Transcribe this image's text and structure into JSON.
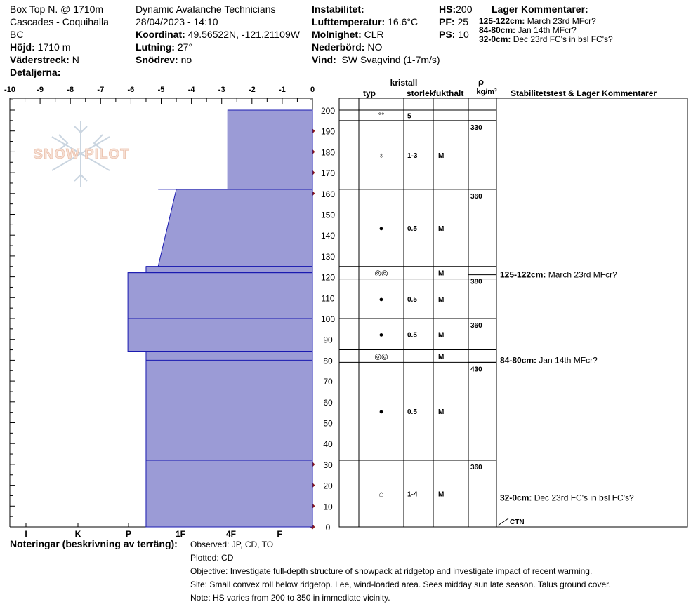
{
  "header": {
    "location": "Box Top N. @ 1710m",
    "range": "Cascades - Coquihalla",
    "region": "BC",
    "elevation_label": "Höjd:",
    "elevation": "1710 m",
    "aspect_label": "Väderstreck:",
    "aspect": "N",
    "details_label": "Detaljerna:",
    "organization": "Dynamic Avalanche Technicians",
    "datetime": "28/04/2023 - 14:10",
    "coord_label": "Koordinat:",
    "coord": "49.56522N, -121.21109W",
    "slope_label": "Lutning:",
    "slope": "27°",
    "drift_label": "Snödrev:",
    "drift": "no",
    "instability_label": "Instabilitet:",
    "airtemp_label": "Lufttemperatur:",
    "airtemp": "16.6°C",
    "cloud_label": "Molnighet:",
    "cloud": "CLR",
    "precip_label": "Nederbörd:",
    "precip": "NO",
    "wind_label": "Vind:",
    "wind": "SW Svagvind (1-7m/s)",
    "hs_label": "HS:",
    "hs": "200",
    "pf_label": "PF:",
    "pf": "25",
    "ps_label": "PS:",
    "ps": "10",
    "layer_comments_title": "Lager Kommentarer:",
    "layer_comments": [
      {
        "range": "125-122cm:",
        "text": "March 23rd MFcr?"
      },
      {
        "range": "84-80cm:",
        "text": "Jan 14th MFcr?"
      },
      {
        "range": "32-0cm:",
        "text": "Dec 23rd FC's in bsl FC's?"
      }
    ]
  },
  "table_headers": {
    "crystal": "kristall",
    "type": "typ",
    "size": "storlek",
    "moisture": "fukthalt",
    "rho": "ρ",
    "density_unit": "kg/m³",
    "stability": "Stabilitetstest & Lager Kommentarer"
  },
  "chart_data": {
    "type": "snow-profile",
    "temp_axis": [
      -10,
      -9,
      -8,
      -7,
      -6,
      -5,
      -4,
      -3,
      -2,
      -1,
      0
    ],
    "height_axis": [
      200,
      190,
      180,
      170,
      160,
      150,
      140,
      130,
      120,
      110,
      100,
      90,
      80,
      70,
      60,
      50,
      40,
      30,
      20,
      10,
      0
    ],
    "hardness_axis": [
      "I",
      "K",
      "P",
      "1F",
      "4F",
      "F"
    ],
    "temperature_points": [
      190,
      180,
      170,
      160,
      30,
      20,
      10,
      0
    ],
    "hardness_profile": [
      {
        "top": 200,
        "bottom": 162,
        "temp_left": -2.8
      },
      {
        "top": 162,
        "bottom": 125,
        "temp_left_top": -4.5,
        "temp_left_bottom": -5.1
      },
      {
        "top": 125,
        "bottom": 122,
        "temp_left": -5.5
      },
      {
        "top": 122,
        "bottom": 84,
        "temp_left": -6.1
      },
      {
        "top": 84,
        "bottom": 0,
        "temp_left": -5.5
      }
    ],
    "layer_lines": [
      162,
      125,
      122,
      100,
      84,
      80,
      32
    ],
    "layers": [
      {
        "top": 200,
        "bottom": 195,
        "type": "°°",
        "size": "5",
        "moisture": ""
      },
      {
        "top": 195,
        "bottom": 162,
        "type": "♁",
        "size": "1-3",
        "moisture": "M"
      },
      {
        "top": 162,
        "bottom": 125,
        "type": "●",
        "size": "0.5",
        "moisture": "M"
      },
      {
        "top": 125,
        "bottom": 119,
        "type": "◎◎",
        "size": "",
        "moisture": "M"
      },
      {
        "top": 119,
        "bottom": 100,
        "type": "●",
        "size": "0.5",
        "moisture": "M"
      },
      {
        "top": 100,
        "bottom": 85,
        "type": "●",
        "size": "0.5",
        "moisture": "M"
      },
      {
        "top": 85,
        "bottom": 79,
        "type": "◎◎",
        "size": "",
        "moisture": "M"
      },
      {
        "top": 79,
        "bottom": 32,
        "type": "●",
        "size": "0.5",
        "moisture": "M"
      },
      {
        "top": 32,
        "bottom": 0,
        "type": "⌂",
        "size": "1-4",
        "moisture": "M"
      }
    ],
    "densities": [
      {
        "at": 195,
        "value": "330"
      },
      {
        "at": 162,
        "value": "360"
      },
      {
        "at": 121,
        "value": "380"
      },
      {
        "at": 100,
        "value": "360"
      },
      {
        "at": 79,
        "value": "430"
      },
      {
        "at": 32,
        "value": "360"
      }
    ],
    "comments": [
      {
        "at": 121,
        "range": "125-122cm:",
        "text": "March 23rd MFcr?"
      },
      {
        "at": 80,
        "range": "84-80cm:",
        "text": "Jan 14th MFcr?"
      },
      {
        "at": 14,
        "range": "32-0cm:",
        "text": "Dec 23rd FC's in bsl FC's?"
      }
    ],
    "test": "CTN"
  },
  "notes": {
    "title": "Noteringar (beskrivning av terräng):",
    "lines": [
      "Observed: JP, CD, TO",
      "Plotted: CD",
      "Objective: Investigate full-depth structure of snowpack at ridgetop and investigate impact of recent warming.",
      "Site: Small convex roll below ridgetop. Lee, wind-loaded area. Sees midday sun late season. Talus ground cover.",
      "Note: HS varies from 200 to 350 in immediate vicinity."
    ]
  },
  "logo": {
    "text": "SNOW PILOT"
  }
}
